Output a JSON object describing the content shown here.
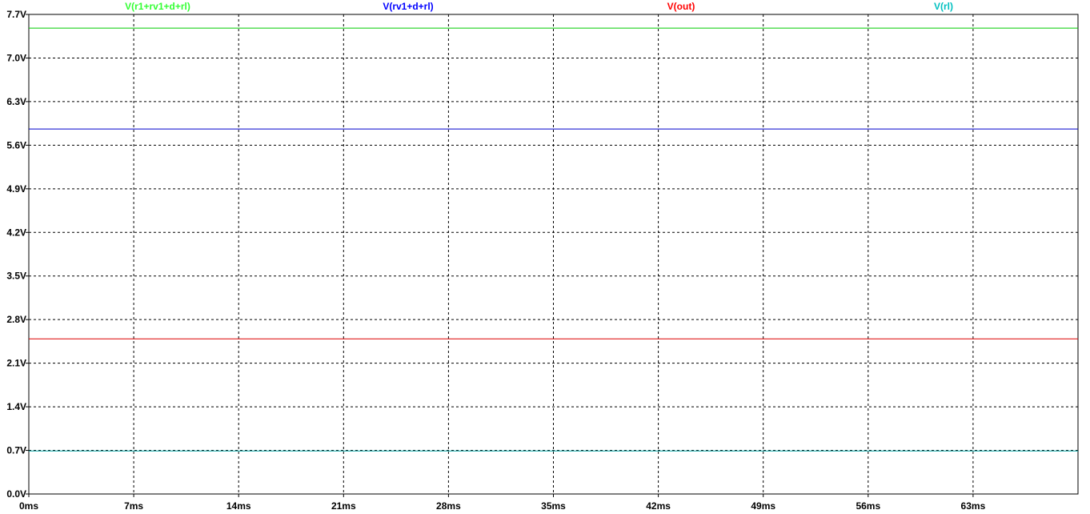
{
  "chart_data": {
    "type": "line",
    "title": "",
    "xlabel": "",
    "ylabel": "",
    "grid": true,
    "xlim": [
      0,
      70
    ],
    "ylim": [
      0,
      7.7
    ],
    "x_ticks": [
      {
        "value": 0,
        "label": "0ms"
      },
      {
        "value": 7,
        "label": "7ms"
      },
      {
        "value": 14,
        "label": "14ms"
      },
      {
        "value": 21,
        "label": "21ms"
      },
      {
        "value": 28,
        "label": "28ms"
      },
      {
        "value": 35,
        "label": "35ms"
      },
      {
        "value": 42,
        "label": "42ms"
      },
      {
        "value": 49,
        "label": "49ms"
      },
      {
        "value": 56,
        "label": "56ms"
      },
      {
        "value": 63,
        "label": "63ms"
      }
    ],
    "y_ticks": [
      {
        "value": 0.0,
        "label": "0.0V"
      },
      {
        "value": 0.7,
        "label": "0.7V"
      },
      {
        "value": 1.4,
        "label": "1.4V"
      },
      {
        "value": 2.1,
        "label": "2.1V"
      },
      {
        "value": 2.8,
        "label": "2.8V"
      },
      {
        "value": 3.5,
        "label": "3.5V"
      },
      {
        "value": 4.2,
        "label": "4.2V"
      },
      {
        "value": 4.9,
        "label": "4.9V"
      },
      {
        "value": 5.6,
        "label": "5.6V"
      },
      {
        "value": 6.3,
        "label": "6.3V"
      },
      {
        "value": 7.0,
        "label": "7.0V"
      },
      {
        "value": 7.7,
        "label": "7.7V"
      }
    ],
    "series": [
      {
        "name": "V(r1+rv1+d+rl)",
        "color": "#00cc00",
        "legend_color": "#33ff33",
        "x": [
          0,
          70
        ],
        "y": [
          7.48,
          7.48
        ]
      },
      {
        "name": "V(rv1+d+rl)",
        "color": "#0000cc",
        "legend_color": "#0000ff",
        "x": [
          0,
          70
        ],
        "y": [
          5.86,
          5.86
        ]
      },
      {
        "name": "V(out)",
        "color": "#dd0000",
        "legend_color": "#ff0000",
        "x": [
          0,
          70
        ],
        "y": [
          2.49,
          2.49
        ]
      },
      {
        "name": "V(rl)",
        "color": "#00a0a0",
        "legend_color": "#00c0c0",
        "x": [
          0,
          70
        ],
        "y": [
          0.69,
          0.69
        ]
      }
    ]
  }
}
